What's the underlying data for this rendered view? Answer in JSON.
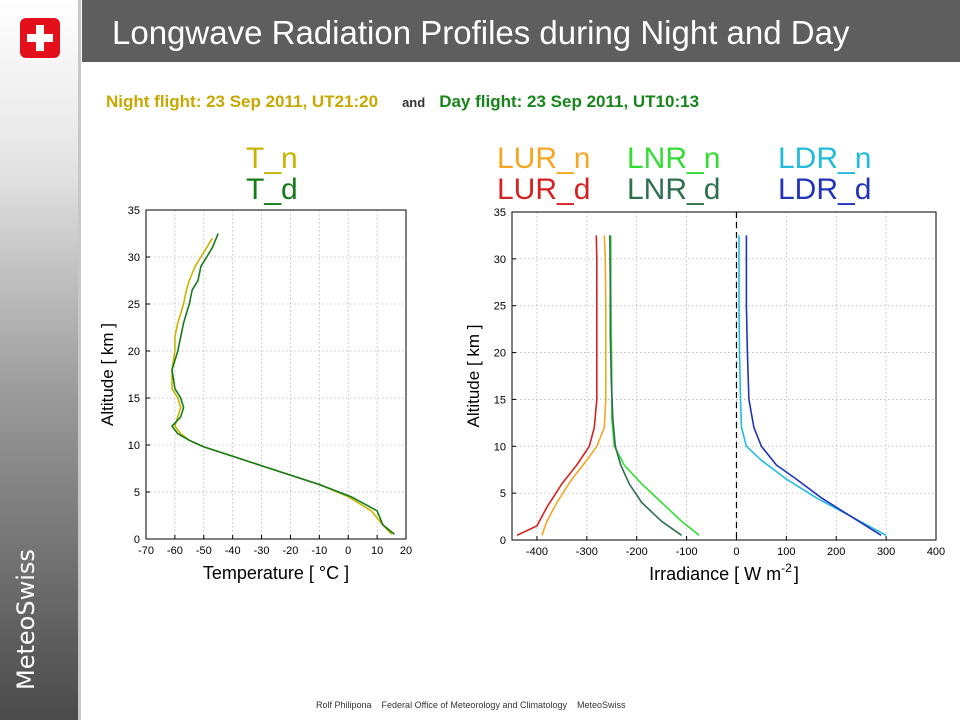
{
  "branding": {
    "vertical_label": "MeteoSwiss",
    "flag_icon": "swiss-cross-icon"
  },
  "header": {
    "title": "Longwave Radiation Profiles during Night and Day"
  },
  "subtitle": {
    "night": "Night flight: 23 Sep 2011, UT21:20",
    "and": "and",
    "day": "Day flight: 23 Sep 2011, UT10:13"
  },
  "legend": {
    "t_n": "T_n",
    "t_d": "T_d",
    "lur_n": "LUR_n",
    "lur_d": "LUR_d",
    "lnr_n": "LNR_n",
    "lnr_d": "LNR_d",
    "ldr_n": "LDR_n",
    "ldr_d": "LDR_d"
  },
  "colors": {
    "t_n": "#c8b400",
    "t_d": "#157a1a",
    "lur_n": "#f5a623",
    "lur_d": "#d62222",
    "lnr_n": "#33dd33",
    "lnr_d": "#2e7050",
    "ldr_n": "#22bbdd",
    "ldr_d": "#2233bb"
  },
  "footer": {
    "author": "Rolf Philipona",
    "office": "Federal Office of Meteorology and Climatology",
    "brand": "MeteoSwiss"
  },
  "chart_data": [
    {
      "type": "line",
      "xlabel": "Temperature [ °C ]",
      "ylabel": "Altitude [ km ]",
      "xlim": [
        -70,
        20
      ],
      "ylim": [
        0,
        35
      ],
      "xticks": [
        -70,
        -60,
        -50,
        -40,
        -30,
        -20,
        -10,
        0,
        10,
        20
      ],
      "yticks": [
        0,
        5,
        10,
        15,
        20,
        25,
        30,
        35
      ],
      "grid": true,
      "series": [
        {
          "name": "T_n",
          "color_key": "t_n",
          "x": [
            15,
            12,
            8,
            0,
            -10,
            -20,
            -30,
            -40,
            -50,
            -55,
            -58,
            -60,
            -59,
            -58,
            -59,
            -61,
            -61,
            -60,
            -60,
            -59,
            -57,
            -56,
            -55,
            -53,
            -51,
            -49,
            -47
          ],
          "y": [
            0.5,
            1.5,
            3,
            4.5,
            5.8,
            6.8,
            7.8,
            8.8,
            9.8,
            10.5,
            11.2,
            12,
            13,
            14,
            15,
            16,
            18,
            20,
            21.5,
            23,
            25,
            26.5,
            27.5,
            29,
            30,
            31,
            32
          ]
        },
        {
          "name": "T_d",
          "color_key": "t_d",
          "x": [
            16,
            12,
            10,
            1,
            -10,
            -20,
            -30,
            -40,
            -50,
            -55,
            -59,
            -61,
            -58,
            -57,
            -58,
            -60,
            -61,
            -59,
            -58,
            -57,
            -55,
            -54,
            -52,
            -51,
            -49,
            -47,
            -45
          ],
          "y": [
            0.5,
            1.5,
            3,
            4.5,
            5.8,
            6.8,
            7.8,
            8.8,
            9.8,
            10.5,
            11.2,
            12,
            13,
            14,
            15,
            16,
            18,
            20,
            21.5,
            23,
            25,
            26.5,
            27.5,
            29,
            30,
            31,
            32.5
          ]
        }
      ]
    },
    {
      "type": "line",
      "xlabel": "Irradiance [ W m",
      "xlabel_sup": "-2",
      "xlabel_end": "]",
      "ylabel": "Altitude [ km ]",
      "xlim": [
        -450,
        400
      ],
      "ylim": [
        0,
        35
      ],
      "xticks": [
        -400,
        -300,
        -200,
        -100,
        0,
        100,
        200,
        300,
        400
      ],
      "yticks": [
        0,
        5,
        10,
        15,
        20,
        25,
        30,
        35
      ],
      "grid": true,
      "zero_line": true,
      "series": [
        {
          "name": "LUR_n",
          "color_key": "lur_n",
          "x": [
            -390,
            -380,
            -360,
            -330,
            -300,
            -280,
            -265,
            -262,
            -262,
            -262,
            -263,
            -265
          ],
          "y": [
            0.5,
            2,
            4,
            6.5,
            8.5,
            10,
            12,
            15,
            20,
            25,
            30,
            32.5
          ]
        },
        {
          "name": "LUR_d",
          "color_key": "lur_d",
          "x": [
            -440,
            -400,
            -380,
            -350,
            -320,
            -295,
            -285,
            -280,
            -280,
            -280,
            -280,
            -281
          ],
          "y": [
            0.5,
            1.5,
            3.5,
            6,
            8,
            10,
            12,
            15,
            20,
            25,
            30,
            32.5
          ]
        },
        {
          "name": "LNR_n",
          "color_key": "lnr_n",
          "x": [
            -75,
            -110,
            -150,
            -190,
            -225,
            -245,
            -250,
            -250,
            -251,
            -252,
            -252
          ],
          "y": [
            0.5,
            2,
            4,
            6,
            8,
            10,
            13,
            17,
            22,
            27,
            32.5
          ]
        },
        {
          "name": "LNR_d",
          "color_key": "lnr_d",
          "x": [
            -110,
            -150,
            -190,
            -215,
            -232,
            -243,
            -248,
            -251,
            -253,
            -253,
            -254
          ],
          "y": [
            0.5,
            2,
            4,
            6,
            8,
            10,
            13,
            17,
            22,
            27,
            32.5
          ]
        },
        {
          "name": "LDR_n",
          "color_key": "ldr_n",
          "x": [
            300,
            230,
            160,
            100,
            50,
            20,
            10,
            8,
            6,
            5,
            5
          ],
          "y": [
            0.5,
            2.5,
            4.5,
            6.5,
            8.5,
            10,
            12,
            15,
            20,
            25,
            32.5
          ]
        },
        {
          "name": "LDR_d",
          "color_key": "ldr_d",
          "x": [
            290,
            230,
            170,
            120,
            80,
            50,
            35,
            25,
            22,
            20,
            20
          ],
          "y": [
            0.5,
            2.5,
            4.5,
            6.5,
            8,
            10,
            12,
            15,
            20,
            25,
            32.5
          ]
        }
      ]
    }
  ]
}
